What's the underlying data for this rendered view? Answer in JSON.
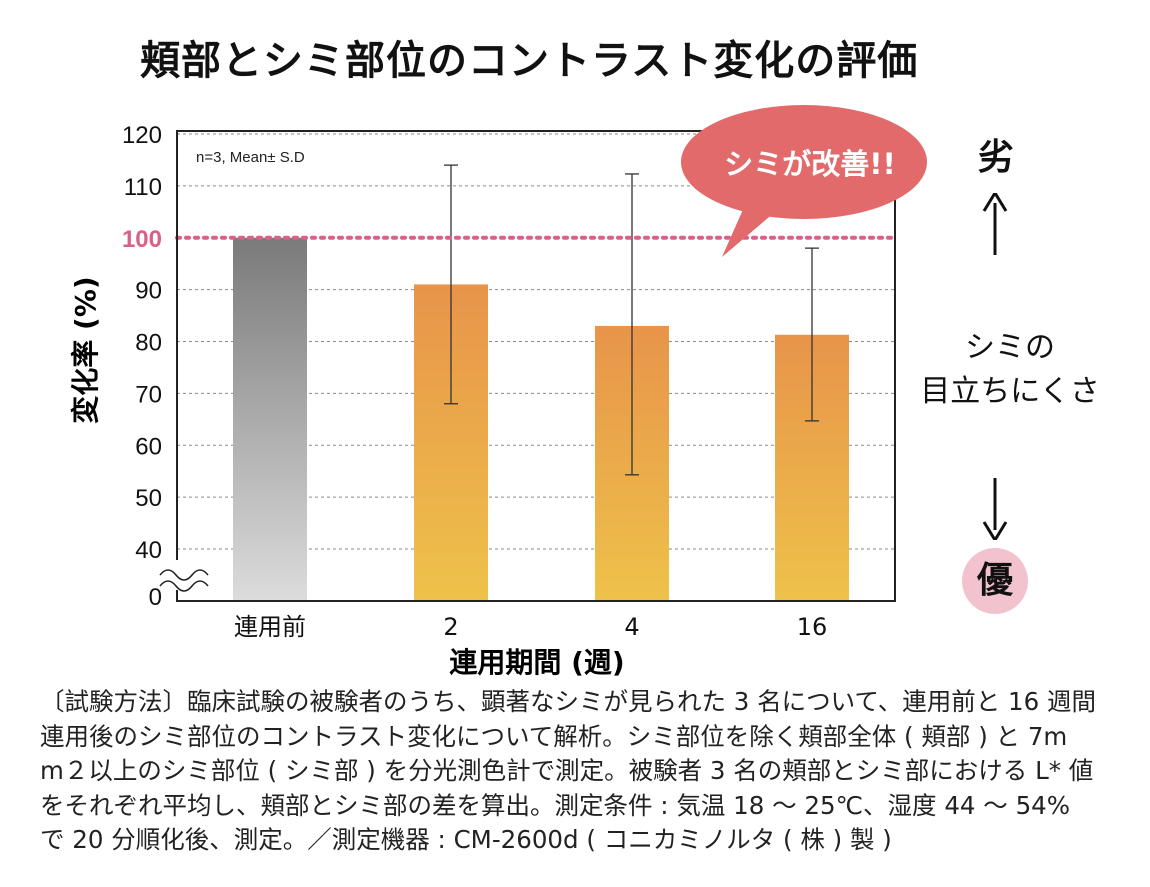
{
  "chart_data": {
    "type": "bar",
    "title": "頬部とシミ部位のコントラスト変化の評価",
    "categories": [
      "連用前",
      "2",
      "4",
      "16"
    ],
    "values": [
      100,
      91,
      83,
      81.3
    ],
    "error_high": [
      null,
      114,
      112.3,
      98
    ],
    "error_low": [
      null,
      68,
      54.3,
      64.7
    ],
    "xlabel": "連用期間 (週)",
    "ylabel": "変化率 (%)",
    "ylim": [
      40,
      120
    ],
    "yticks": [
      "0",
      "40",
      "50",
      "60",
      "70",
      "80",
      "90",
      "100",
      "110",
      "120"
    ],
    "reference_line": 100,
    "axis_break": true,
    "note": "n=3, Mean± S.D",
    "colors": {
      "baseline_top": "#7a7a7a",
      "baseline_bottom": "#dcdcdc",
      "bar_top": "#e8944a",
      "bar_bottom": "#eec24a",
      "reference": "#d9608a",
      "bubble": "#e26a6b",
      "badge": "#f2c3cf"
    }
  },
  "callout": "シミが改善!!",
  "side": {
    "worse": "劣",
    "label_line1": "シミの",
    "label_line2": "目立ちにくさ",
    "better": "優"
  },
  "method": {
    "line1": "〔試験方法〕臨床試験の被験者のうち、顕著なシミが見られた 3 名について、連用前と 16 週間",
    "line2": "連用後のシミ部位のコントラスト変化について解析。シミ部位を除く頬部全体 ( 頬部 ) と 7m",
    "line3": "m２以上のシミ部位 ( シミ部 ) を分光測色計で測定。被験者 3 名の頬部とシミ部における L* 値",
    "line4": "をそれぞれ平均し、頬部とシミ部の差を算出。測定条件 : 気温 18 ～ 25℃、湿度 44 ～ 54%",
    "line5": "で 20 分順化後、測定。／測定機器 : CM-2600d ( コニカミノルタ ( 株 ) 製 )"
  }
}
